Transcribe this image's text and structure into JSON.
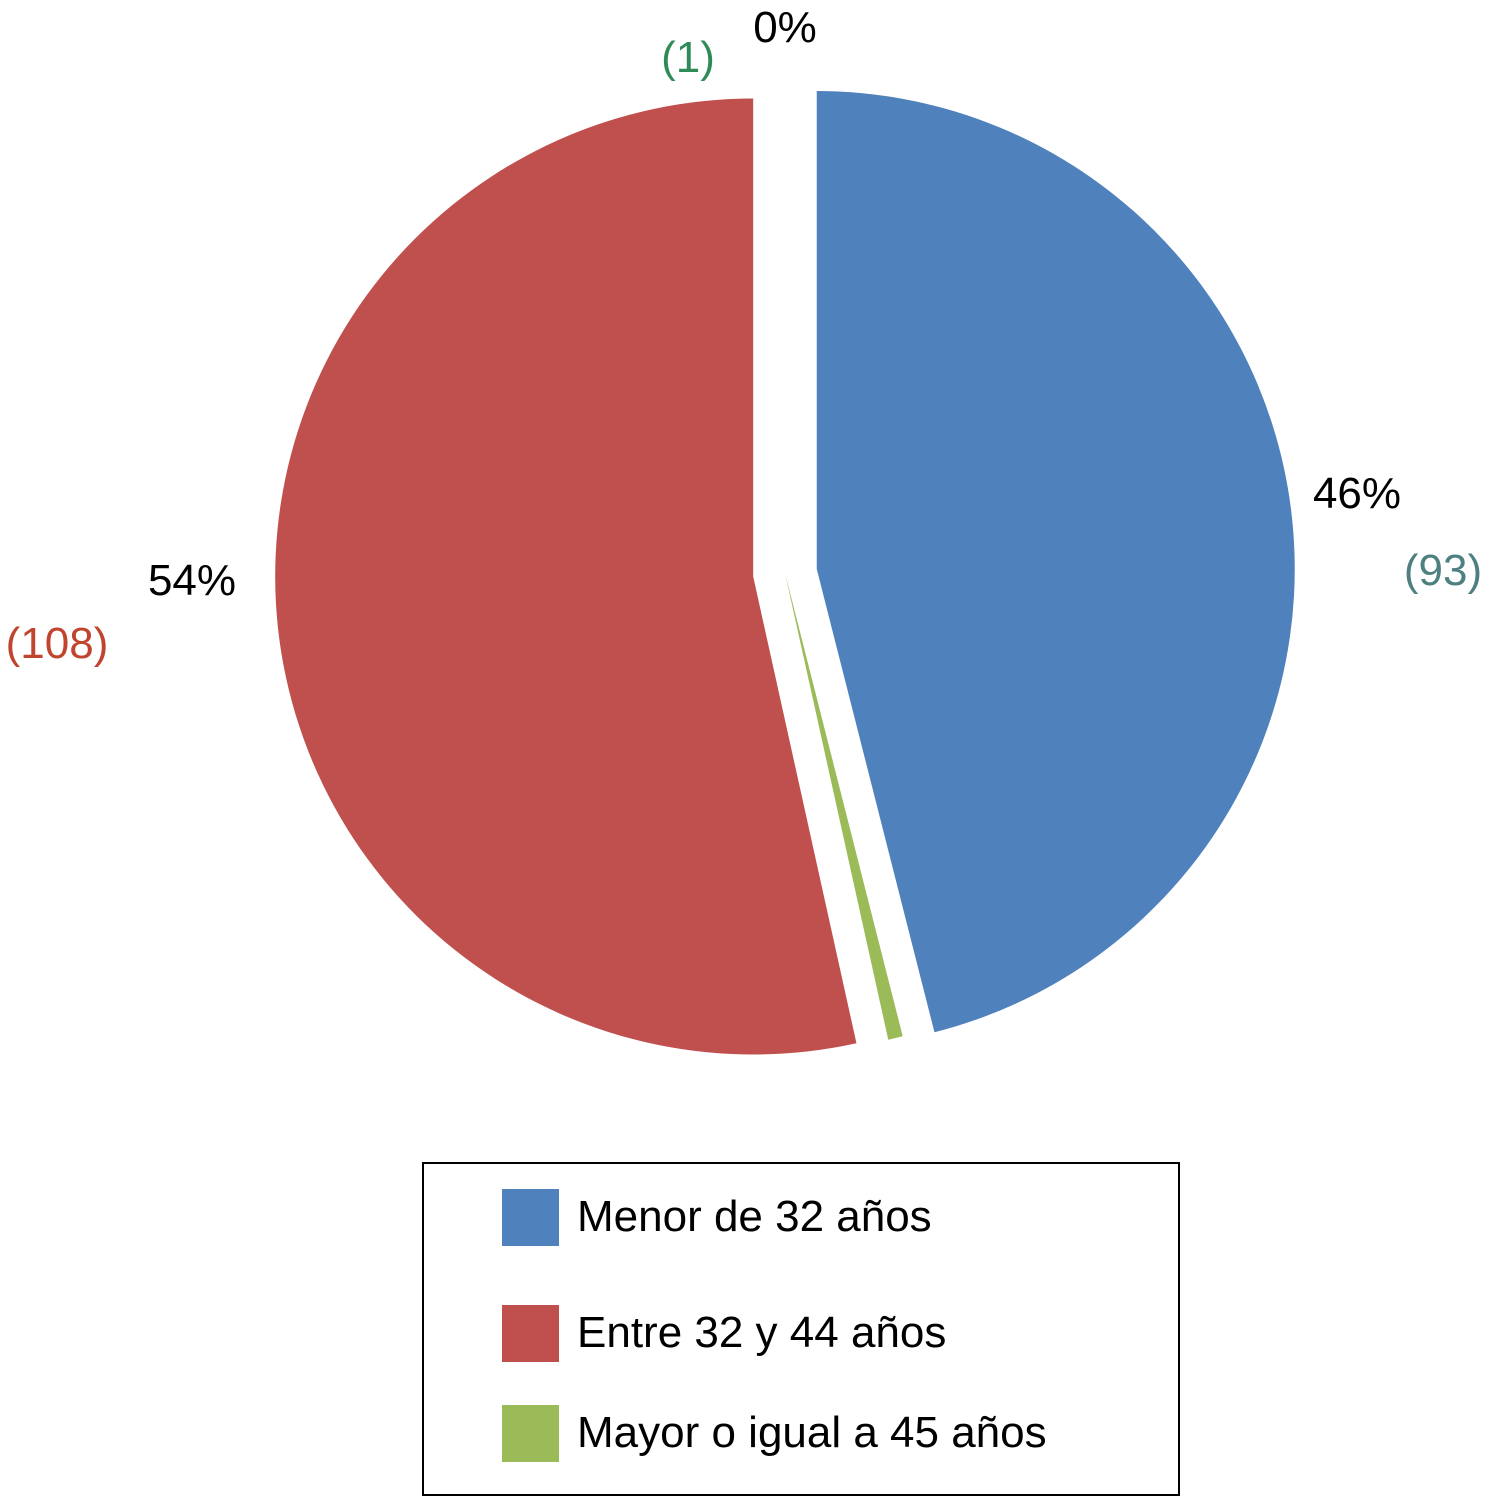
{
  "chart_data": {
    "type": "pie",
    "slices": [
      {
        "label": "Menor de 32 años",
        "value": 93,
        "percent_label": "46%",
        "count_label": "(93)",
        "color": "#4F81BD",
        "count_color": "#4F8080"
      },
      {
        "label": "Mayor o igual a 45 años",
        "value": 1,
        "percent_label": "0%",
        "count_label": "(1)",
        "color": "#9BBB59",
        "count_color": "#2E8B57"
      },
      {
        "label": "Entre 32 y 44 años",
        "value": 108,
        "percent_label": "54%",
        "count_label": "(108)",
        "color": "#C0504D",
        "count_color": "#C0442E"
      }
    ],
    "legend": {
      "placement": "bottom",
      "entries": [
        "Menor de 32 años",
        "Entre 32 y 44 años",
        "Mayor o igual a 45 años"
      ]
    }
  }
}
